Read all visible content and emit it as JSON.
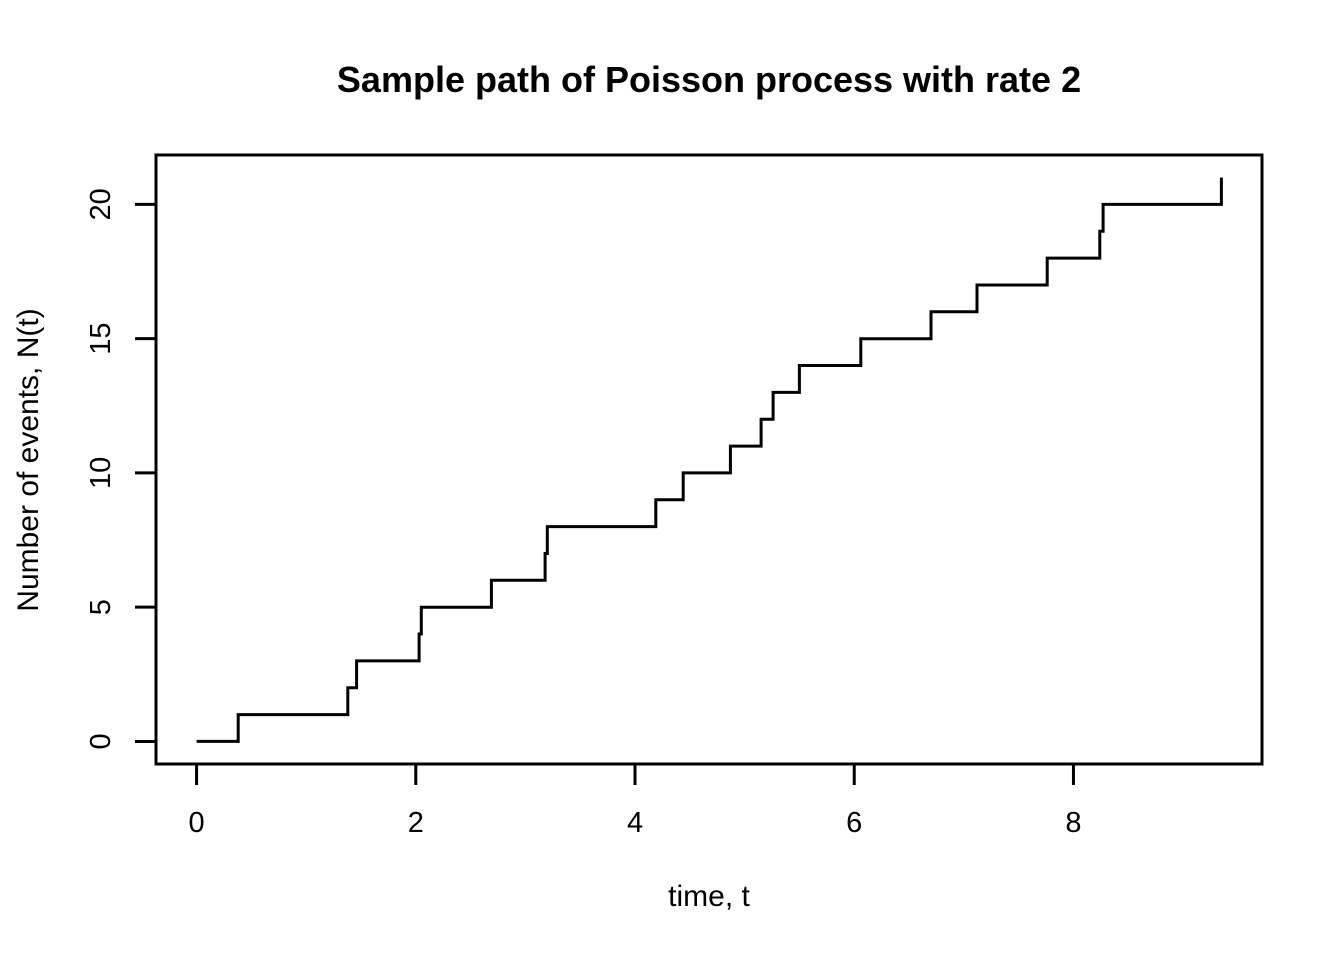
{
  "chart_data": {
    "type": "step",
    "title": "Sample path of Poisson process with rate 2",
    "xlabel": "time, t",
    "ylabel": "Number of events, N(t)",
    "x_ticks": [
      0,
      2,
      4,
      6,
      8
    ],
    "y_ticks": [
      0,
      5,
      10,
      15,
      20
    ],
    "xlim": [
      -0.37,
      9.72
    ],
    "ylim": [
      -0.84,
      21.84
    ],
    "start_point": {
      "t": 0.0,
      "count": 0
    },
    "event_times": [
      0.38,
      1.38,
      1.46,
      2.03,
      2.05,
      2.69,
      3.18,
      3.2,
      4.19,
      4.44,
      4.87,
      5.15,
      5.26,
      5.5,
      6.06,
      6.7,
      7.12,
      7.76,
      8.24,
      8.27,
      9.35
    ],
    "final_count": 21,
    "line_color": "#000000",
    "axis_color": "#000000",
    "background_color": "#ffffff",
    "grid": false,
    "legend": false
  }
}
